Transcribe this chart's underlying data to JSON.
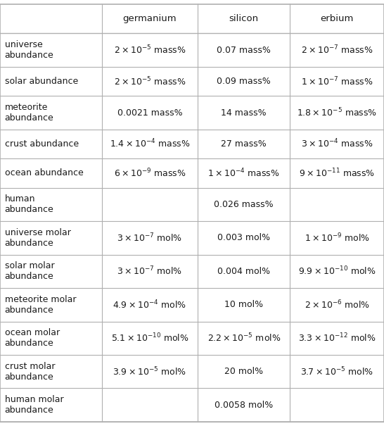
{
  "col_headers": [
    "",
    "germanium",
    "silicon",
    "erbium"
  ],
  "rows": [
    {
      "label": "universe\nabundance",
      "germanium": "$2\\times10^{-5}$ mass%",
      "silicon": "0.07 mass%",
      "erbium": "$2\\times10^{-7}$ mass%"
    },
    {
      "label": "solar abundance",
      "germanium": "$2\\times10^{-5}$ mass%",
      "silicon": "0.09 mass%",
      "erbium": "$1\\times10^{-7}$ mass%"
    },
    {
      "label": "meteorite\nabundance",
      "germanium": "0.0021 mass%",
      "silicon": "14 mass%",
      "erbium": "$1.8\\times10^{-5}$ mass%"
    },
    {
      "label": "crust abundance",
      "germanium": "$1.4\\times10^{-4}$ mass%",
      "silicon": "27 mass%",
      "erbium": "$3\\times10^{-4}$ mass%"
    },
    {
      "label": "ocean abundance",
      "germanium": "$6\\times10^{-9}$ mass%",
      "silicon": "$1\\times10^{-4}$ mass%",
      "erbium": "$9\\times10^{-11}$ mass%"
    },
    {
      "label": "human\nabundance",
      "germanium": "",
      "silicon": "0.026 mass%",
      "erbium": ""
    },
    {
      "label": "universe molar\nabundance",
      "germanium": "$3\\times10^{-7}$ mol%",
      "silicon": "0.003 mol%",
      "erbium": "$1\\times10^{-9}$ mol%"
    },
    {
      "label": "solar molar\nabundance",
      "germanium": "$3\\times10^{-7}$ mol%",
      "silicon": "0.004 mol%",
      "erbium": "$9.9\\times10^{-10}$ mol%"
    },
    {
      "label": "meteorite molar\nabundance",
      "germanium": "$4.9\\times10^{-4}$ mol%",
      "silicon": "10 mol%",
      "erbium": "$2\\times10^{-6}$ mol%"
    },
    {
      "label": "ocean molar\nabundance",
      "germanium": "$5.1\\times10^{-10}$ mol%",
      "silicon": "$2.2\\times10^{-5}$ mol%",
      "erbium": "$3.3\\times10^{-12}$ mol%"
    },
    {
      "label": "crust molar\nabundance",
      "germanium": "$3.9\\times10^{-5}$ mol%",
      "silicon": "20 mol%",
      "erbium": "$3.7\\times10^{-5}$ mol%"
    },
    {
      "label": "human molar\nabundance",
      "germanium": "",
      "silicon": "0.0058 mol%",
      "erbium": ""
    }
  ],
  "bg_color": "#ffffff",
  "grid_color": "#b0b0b0",
  "text_color": "#1a1a1a",
  "font_size": 9.0,
  "header_font_size": 9.5,
  "fig_width": 5.46,
  "fig_height": 6.05,
  "dpi": 100
}
